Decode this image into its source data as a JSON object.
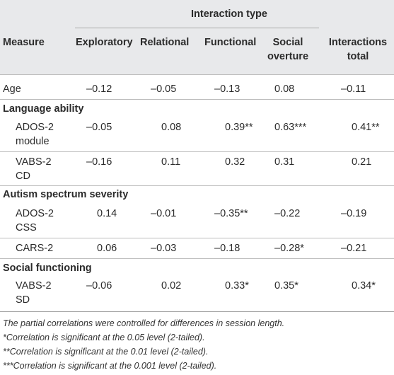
{
  "header": {
    "group_label": "Interaction type",
    "measure": "Measure",
    "exploratory": "Exploratory",
    "relational": "Relational",
    "functional": "Functional",
    "social_1": "Social",
    "social_2": "overture",
    "total_1": "Interactions",
    "total_2": "total"
  },
  "rows": {
    "age": {
      "label": "Age",
      "v": [
        "–0.12",
        "–0.05",
        "–0.13",
        "0.08",
        "–0.11"
      ]
    },
    "section_language": "Language ability",
    "ados_module": {
      "label1": "ADOS-2",
      "label2": "module",
      "v": [
        "–0.05",
        "0.08",
        "0.39**",
        "0.63***",
        "0.41**"
      ]
    },
    "vabs_cd": {
      "label1": "VABS-2",
      "label2": "CD",
      "v": [
        "–0.16",
        "0.11",
        "0.32",
        "0.31",
        "0.21"
      ]
    },
    "section_autism": "Autism spectrum severity",
    "ados_css": {
      "label1": "ADOS-2",
      "label2": "CSS",
      "v": [
        "0.14",
        "–0.01",
        "–0.35**",
        "–0.22",
        "–0.19"
      ]
    },
    "cars": {
      "label": "CARS-2",
      "v": [
        "0.06",
        "–0.03",
        "–0.18",
        "–0.28*",
        "–0.21"
      ]
    },
    "section_social": "Social functioning",
    "vabs_sd": {
      "label1": "VABS-2",
      "label2": "SD",
      "v": [
        "–0.06",
        "0.02",
        "0.33*",
        "0.35*",
        "0.34*"
      ]
    }
  },
  "footnotes": [
    "The partial correlations were controlled for differences in session length.",
    "*Correlation is significant at the 0.05 level (2-tailed).",
    "**Correlation is significant at the 0.01 level (2-tailed).",
    "***Correlation is significant at the 0.001 level (2-tailed)."
  ]
}
